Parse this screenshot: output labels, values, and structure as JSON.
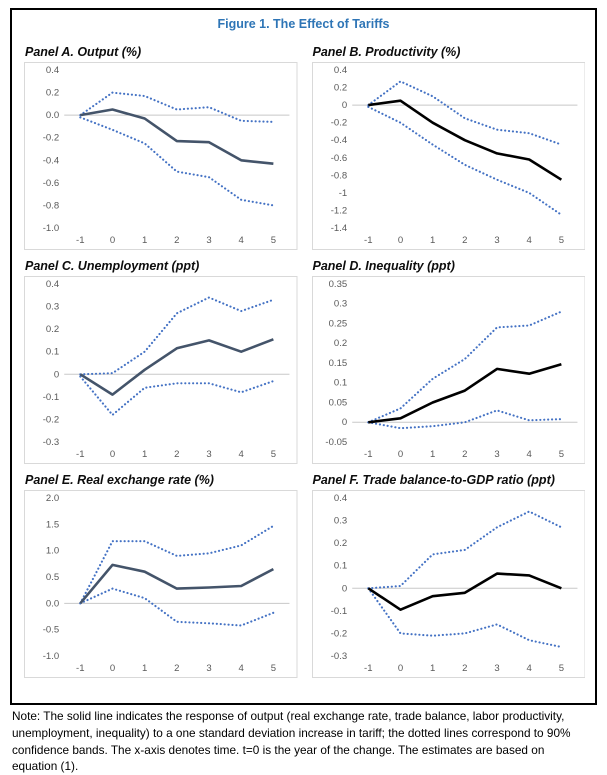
{
  "figure": {
    "title": "Figure 1. The Effect of Tariffs",
    "title_color": "#2E75B6"
  },
  "note": "Note: The solid line indicates the response of output (real exchange rate, trade balance, labor productivity, unemployment, inequality) to a one standard deviation increase in tariff; the dotted lines correspond to 90% confidence bands. The x-axis denotes time. t=0 is the year of the change. The estimates are based on equation (1).",
  "colors": {
    "dotted_band": "#4472C4",
    "solid_slate": "#44546A",
    "solid_black": "#000000",
    "axis_label": "#595959",
    "zero_line": "#C8C8C8",
    "chart_border": "#D9D9D9"
  },
  "chart_data": {
    "type": "line",
    "x": [
      -1,
      0,
      1,
      2,
      3,
      4,
      5
    ],
    "x_tick_labels": [
      "-1",
      "0",
      "1",
      "2",
      "3",
      "4",
      "5"
    ],
    "legend": [
      "solid line: point estimate",
      "dotted lines: 90% confidence bands"
    ],
    "panels": [
      {
        "id": "A",
        "title": "Panel A. Output (%)",
        "solid_color": "#44546A",
        "ylim": [
          -1.0,
          0.4
        ],
        "y_tick_labels": [
          "0.4",
          "0.2",
          "0.0",
          "-0.2",
          "-0.4",
          "-0.6",
          "-0.8",
          "-1.0"
        ],
        "y_tick_values": [
          0.4,
          0.2,
          0.0,
          -0.2,
          -0.4,
          -0.6,
          -0.8,
          -1.0
        ],
        "series": [
          {
            "name": "estimate",
            "style": "solid",
            "values": [
              0,
              0.05,
              -0.03,
              -0.23,
              -0.24,
              -0.4,
              -0.43
            ]
          },
          {
            "name": "upper-90-band",
            "style": "dotted",
            "values": [
              0,
              0.2,
              0.17,
              0.05,
              0.07,
              -0.05,
              -0.06
            ]
          },
          {
            "name": "lower-90-band",
            "style": "dotted",
            "values": [
              -0.02,
              -0.13,
              -0.25,
              -0.5,
              -0.55,
              -0.75,
              -0.8
            ]
          }
        ]
      },
      {
        "id": "B",
        "title": "Panel B. Productivity (%)",
        "solid_color": "#000000",
        "ylim": [
          -1.4,
          0.4
        ],
        "y_tick_labels": [
          "0.4",
          "0.2",
          "0",
          "-0.2",
          "-0.4",
          "-0.6",
          "-0.8",
          "-1",
          "-1.2",
          "-1.4"
        ],
        "y_tick_values": [
          0.4,
          0.2,
          0,
          -0.2,
          -0.4,
          -0.6,
          -0.8,
          -1,
          -1.2,
          -1.4
        ],
        "series": [
          {
            "name": "estimate",
            "style": "solid",
            "values": [
              0,
              0.05,
              -0.2,
              -0.4,
              -0.55,
              -0.62,
              -0.85
            ]
          },
          {
            "name": "upper-90-band",
            "style": "dotted",
            "values": [
              0,
              0.27,
              0.1,
              -0.15,
              -0.28,
              -0.32,
              -0.45
            ]
          },
          {
            "name": "lower-90-band",
            "style": "dotted",
            "values": [
              -0.02,
              -0.2,
              -0.45,
              -0.68,
              -0.85,
              -1.0,
              -1.25
            ]
          }
        ]
      },
      {
        "id": "C",
        "title": "Panel C. Unemployment (ppt)",
        "solid_color": "#44546A",
        "ylim": [
          -0.3,
          0.4
        ],
        "y_tick_labels": [
          "0.4",
          "0.3",
          "0.2",
          "0.1",
          "0",
          "-0.1",
          "-0.2",
          "-0.3"
        ],
        "y_tick_values": [
          0.4,
          0.3,
          0.2,
          0.1,
          0,
          -0.1,
          -0.2,
          -0.3
        ],
        "series": [
          {
            "name": "estimate",
            "style": "solid",
            "values": [
              0,
              -0.09,
              0.02,
              0.115,
              0.15,
              0.1,
              0.155
            ]
          },
          {
            "name": "upper-90-band",
            "style": "dotted",
            "values": [
              0,
              0.005,
              0.1,
              0.27,
              0.34,
              0.28,
              0.33
            ]
          },
          {
            "name": "lower-90-band",
            "style": "dotted",
            "values": [
              -0.01,
              -0.18,
              -0.06,
              -0.04,
              -0.04,
              -0.08,
              -0.03
            ]
          }
        ]
      },
      {
        "id": "D",
        "title": "Panel D. Inequality (ppt)",
        "solid_color": "#000000",
        "ylim": [
          -0.05,
          0.35
        ],
        "y_tick_labels": [
          "0.35",
          "0.3",
          "0.25",
          "0.2",
          "0.15",
          "0.1",
          "0.05",
          "0",
          "-0.05"
        ],
        "y_tick_values": [
          0.35,
          0.3,
          0.25,
          0.2,
          0.15,
          0.1,
          0.05,
          0,
          -0.05
        ],
        "series": [
          {
            "name": "estimate",
            "style": "solid",
            "values": [
              0,
              0.01,
              0.05,
              0.08,
              0.135,
              0.123,
              0.147
            ]
          },
          {
            "name": "upper-90-band",
            "style": "dotted",
            "values": [
              0,
              0.035,
              0.11,
              0.16,
              0.24,
              0.245,
              0.28
            ]
          },
          {
            "name": "lower-90-band",
            "style": "dotted",
            "values": [
              0,
              -0.015,
              -0.01,
              0.0,
              0.03,
              0.005,
              0.008
            ]
          }
        ]
      },
      {
        "id": "E",
        "title": "Panel E. Real exchange rate (%)",
        "solid_color": "#44546A",
        "ylim": [
          -1.0,
          2.0
        ],
        "y_tick_labels": [
          "2.0",
          "1.5",
          "1.0",
          "0.5",
          "0.0",
          "-0.5",
          "-1.0"
        ],
        "y_tick_values": [
          2.0,
          1.5,
          1.0,
          0.5,
          0.0,
          -0.5,
          -1.0
        ],
        "series": [
          {
            "name": "estimate",
            "style": "solid",
            "values": [
              0,
              0.73,
              0.6,
              0.28,
              0.3,
              0.33,
              0.65
            ]
          },
          {
            "name": "upper-90-band",
            "style": "dotted",
            "values": [
              0,
              1.18,
              1.18,
              0.9,
              0.95,
              1.1,
              1.47
            ]
          },
          {
            "name": "lower-90-band",
            "style": "dotted",
            "values": [
              0,
              0.28,
              0.1,
              -0.35,
              -0.38,
              -0.42,
              -0.18
            ]
          }
        ]
      },
      {
        "id": "F",
        "title": "Panel F. Trade balance-to-GDP ratio (ppt)",
        "solid_color": "#000000",
        "ylim": [
          -0.3,
          0.4
        ],
        "y_tick_labels": [
          "0.4",
          "0.3",
          "0.2",
          "0.1",
          "0",
          "-0.1",
          "-0.2",
          "-0.3"
        ],
        "y_tick_values": [
          0.4,
          0.3,
          0.2,
          0.1,
          0,
          -0.1,
          -0.2,
          -0.3
        ],
        "series": [
          {
            "name": "estimate",
            "style": "solid",
            "values": [
              0,
              -0.095,
              -0.035,
              -0.02,
              0.065,
              0.057,
              0.0
            ]
          },
          {
            "name": "upper-90-band",
            "style": "dotted",
            "values": [
              0,
              0.01,
              0.15,
              0.17,
              0.27,
              0.34,
              0.27
            ]
          },
          {
            "name": "lower-90-band",
            "style": "dotted",
            "values": [
              0,
              -0.2,
              -0.21,
              -0.2,
              -0.16,
              -0.23,
              -0.26
            ]
          }
        ]
      }
    ]
  }
}
